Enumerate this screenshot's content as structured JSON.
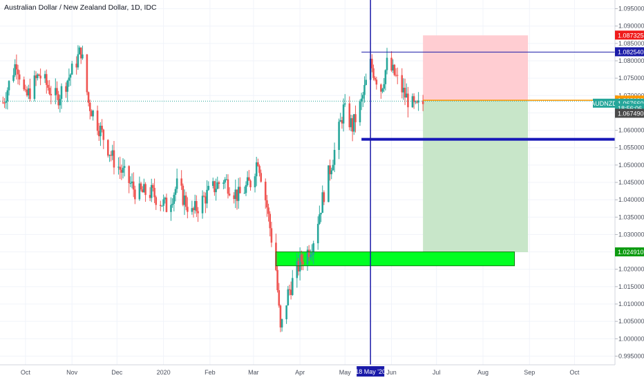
{
  "header": {
    "title": "Australian Dollar / New Zealand Dollar, 1D, IDC"
  },
  "colors": {
    "bull": "#26a69a",
    "bear": "#ef5350",
    "stop_zone": "#ffcdd2",
    "target_zone": "#c8e6c9",
    "demand_zone": "#00ff22",
    "vertical_line": "#1a1aa8",
    "support_line": "#1717b8",
    "entry_line": "#ff9800",
    "last_price": "#26a69a"
  },
  "chart_data": {
    "type": "candlestick",
    "symbol": "AUDNZD",
    "interval": "1D",
    "y_range": [
      0.9925,
      1.0975
    ],
    "x_range": [
      "2019-09-14",
      "2020-10-28"
    ],
    "y_ticks": [
      "1.095000",
      "1.090000",
      "1.085000",
      "1.080000",
      "1.075000",
      "1.070000",
      "1.065000",
      "1.060000",
      "1.055000",
      "1.050000",
      "1.045000",
      "1.040000",
      "1.035000",
      "1.030000",
      "1.025000",
      "1.020000",
      "1.015000",
      "1.010000",
      "1.005000",
      "1.000000",
      "0.995000"
    ],
    "x_ticks": [
      {
        "label": "Oct",
        "date": "2019-10-01"
      },
      {
        "label": "Nov",
        "date": "2019-11-01"
      },
      {
        "label": "Dec",
        "date": "2019-12-01"
      },
      {
        "label": "2020",
        "date": "2020-01-01"
      },
      {
        "label": "Feb",
        "date": "2020-02-01"
      },
      {
        "label": "Mar",
        "date": "2020-03-01"
      },
      {
        "label": "Apr",
        "date": "2020-04-01"
      },
      {
        "label": "May",
        "date": "2020-05-01"
      },
      {
        "label": "Jun",
        "date": "2020-06-01"
      },
      {
        "label": "Jul",
        "date": "2020-07-01"
      },
      {
        "label": "Aug",
        "date": "2020-08-01"
      },
      {
        "label": "Sep",
        "date": "2020-09-01"
      },
      {
        "label": "Oct",
        "date": "2020-10-01"
      }
    ],
    "price_path": [
      {
        "date": "2019-09-16",
        "price": 1.068
      },
      {
        "date": "2019-09-25",
        "price": 1.08
      },
      {
        "date": "2019-10-01",
        "price": 1.069
      },
      {
        "date": "2019-10-10",
        "price": 1.076
      },
      {
        "date": "2019-10-22",
        "price": 1.069
      },
      {
        "date": "2019-11-01",
        "price": 1.077
      },
      {
        "date": "2019-11-07",
        "price": 1.083
      },
      {
        "date": "2019-11-12",
        "price": 1.068
      },
      {
        "date": "2019-11-20",
        "price": 1.06
      },
      {
        "date": "2019-11-28",
        "price": 1.052
      },
      {
        "date": "2019-12-06",
        "price": 1.047
      },
      {
        "date": "2019-12-14",
        "price": 1.042
      },
      {
        "date": "2019-12-24",
        "price": 1.042
      },
      {
        "date": "2020-01-03",
        "price": 1.038
      },
      {
        "date": "2020-01-10",
        "price": 1.044
      },
      {
        "date": "2020-01-20",
        "price": 1.036
      },
      {
        "date": "2020-01-31",
        "price": 1.042
      },
      {
        "date": "2020-02-10",
        "price": 1.046
      },
      {
        "date": "2020-02-20",
        "price": 1.041
      },
      {
        "date": "2020-02-28",
        "price": 1.045
      },
      {
        "date": "2020-03-04",
        "price": 1.052
      },
      {
        "date": "2020-03-10",
        "price": 1.038
      },
      {
        "date": "2020-03-16",
        "price": 1.02
      },
      {
        "date": "2020-03-19",
        "price": 1.002
      },
      {
        "date": "2020-03-24",
        "price": 1.013
      },
      {
        "date": "2020-04-01",
        "price": 1.022
      },
      {
        "date": "2020-04-09",
        "price": 1.027
      },
      {
        "date": "2020-04-17",
        "price": 1.042
      },
      {
        "date": "2020-04-24",
        "price": 1.054
      },
      {
        "date": "2020-04-30",
        "price": 1.066
      },
      {
        "date": "2020-05-06",
        "price": 1.061
      },
      {
        "date": "2020-05-12",
        "price": 1.068
      },
      {
        "date": "2020-05-18",
        "price": 1.079
      },
      {
        "date": "2020-05-25",
        "price": 1.072
      },
      {
        "date": "2020-05-29",
        "price": 1.079
      },
      {
        "date": "2020-06-03",
        "price": 1.076
      },
      {
        "date": "2020-06-10",
        "price": 1.07
      },
      {
        "date": "2020-06-17",
        "price": 1.066
      },
      {
        "date": "2020-06-22",
        "price": 1.0677
      }
    ],
    "last_price": 1.06766,
    "dotted_price_line": 1.0684,
    "annotations": {
      "vertical_line": {
        "date": "2020-05-18",
        "label": "18 May '20"
      },
      "resistance_line": {
        "price": 1.0825,
        "date_start": "2020-05-12",
        "label": "1.082540"
      },
      "support_line": {
        "price": 1.0574,
        "date_start": "2020-05-12"
      },
      "entry_line": {
        "price": 1.06863,
        "date_start": "2020-06-22",
        "date_end": "2020-08-31",
        "label": "1.068630"
      },
      "stop_zone": {
        "top": 1.08732,
        "bottom": 1.06863,
        "date_start": "2020-06-22",
        "date_end": "2020-08-31",
        "label": "1.087325"
      },
      "target_zone": {
        "top": 1.06863,
        "bottom": 1.02491,
        "date_start": "2020-06-22",
        "date_end": "2020-08-31",
        "label": "1.024910"
      },
      "demand_zone": {
        "top": 1.025,
        "bottom": 1.021,
        "date_start": "2020-03-16",
        "date_end": "2020-08-22"
      }
    },
    "price_tags": [
      {
        "label": "1.087325",
        "price": 1.0873,
        "color": "#ef1b1b"
      },
      {
        "label": "1.082540",
        "price": 1.0825,
        "color": "#1a1aa8"
      },
      {
        "label": "1.068630",
        "price": 1.0686,
        "color": "#ff9800"
      },
      {
        "symbol": "AUDNZD",
        "label": "1.067660",
        "price": 1.0677,
        "color": "#26a69a"
      },
      {
        "label": "18:56:06",
        "price": 1.0663,
        "color": "#26a69a"
      },
      {
        "label": "1.067490",
        "price": 1.0648,
        "color": "#4a4a4a"
      },
      {
        "label": "1.024910",
        "price": 1.0249,
        "color": "#0c9b10"
      }
    ]
  }
}
